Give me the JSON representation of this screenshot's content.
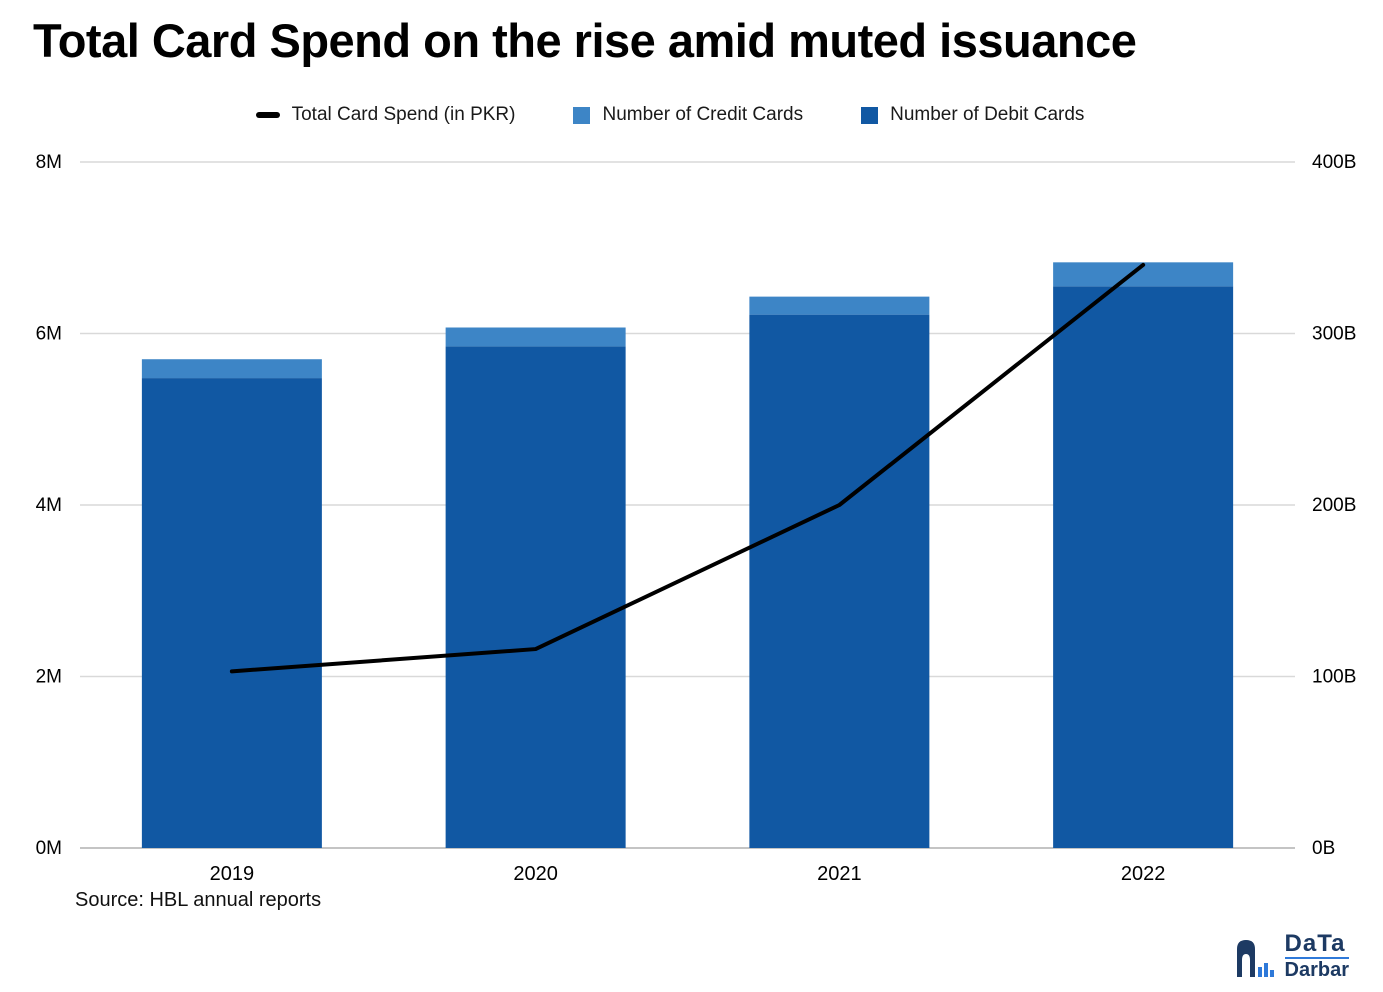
{
  "title": "Total Card Spend on the rise amid muted issuance",
  "source": "Source: HBL annual reports",
  "logo": {
    "line1": "DaTa",
    "line2": "Darbar"
  },
  "colors": {
    "debit": "#1158a3",
    "credit": "#3d85c6",
    "spend_line": "#000000",
    "gridline": "#d9d9d9",
    "baseline": "#b0b0b0",
    "axis_text": "#000000",
    "logo_navy": "#1d3a63",
    "logo_blue": "#2e79d9"
  },
  "legend": [
    {
      "label": "Total Card Spend (in PKR)",
      "marker": "line",
      "color": "#000000"
    },
    {
      "label": "Number of Credit Cards",
      "marker": "square",
      "color": "#3d85c6"
    },
    {
      "label": "Number of Debit Cards",
      "marker": "square",
      "color": "#1158a3"
    }
  ],
  "chart_data": {
    "type": "combo-stacked-bar-line",
    "categories": [
      "2019",
      "2020",
      "2021",
      "2022"
    ],
    "bar_series": [
      {
        "name": "Number of Debit Cards",
        "axis": "left",
        "unit": "M cards",
        "color": "#1158a3",
        "values": [
          5.48,
          5.85,
          6.22,
          6.55
        ]
      },
      {
        "name": "Number of Credit Cards",
        "axis": "left",
        "unit": "M cards",
        "color": "#3d85c6",
        "values": [
          0.22,
          0.22,
          0.21,
          0.28
        ]
      }
    ],
    "line_series": [
      {
        "name": "Total Card Spend (in PKR)",
        "axis": "right",
        "unit": "B PKR",
        "color": "#000000",
        "values": [
          103,
          116,
          200,
          340
        ]
      }
    ],
    "left_axis": {
      "title": "",
      "min": 0,
      "max": 8,
      "ticks": [
        {
          "label": "0M",
          "value": 0
        },
        {
          "label": "2M",
          "value": 2
        },
        {
          "label": "4M",
          "value": 4
        },
        {
          "label": "6M",
          "value": 6
        },
        {
          "label": "8M",
          "value": 8
        }
      ]
    },
    "right_axis": {
      "title": "",
      "min": 0,
      "max": 400,
      "ticks": [
        {
          "label": "0B",
          "value": 0
        },
        {
          "label": "100B",
          "value": 100
        },
        {
          "label": "200B",
          "value": 200
        },
        {
          "label": "300B",
          "value": 300
        },
        {
          "label": "400B",
          "value": 400
        }
      ]
    },
    "grid": "horizontal",
    "legend_position": "top"
  }
}
